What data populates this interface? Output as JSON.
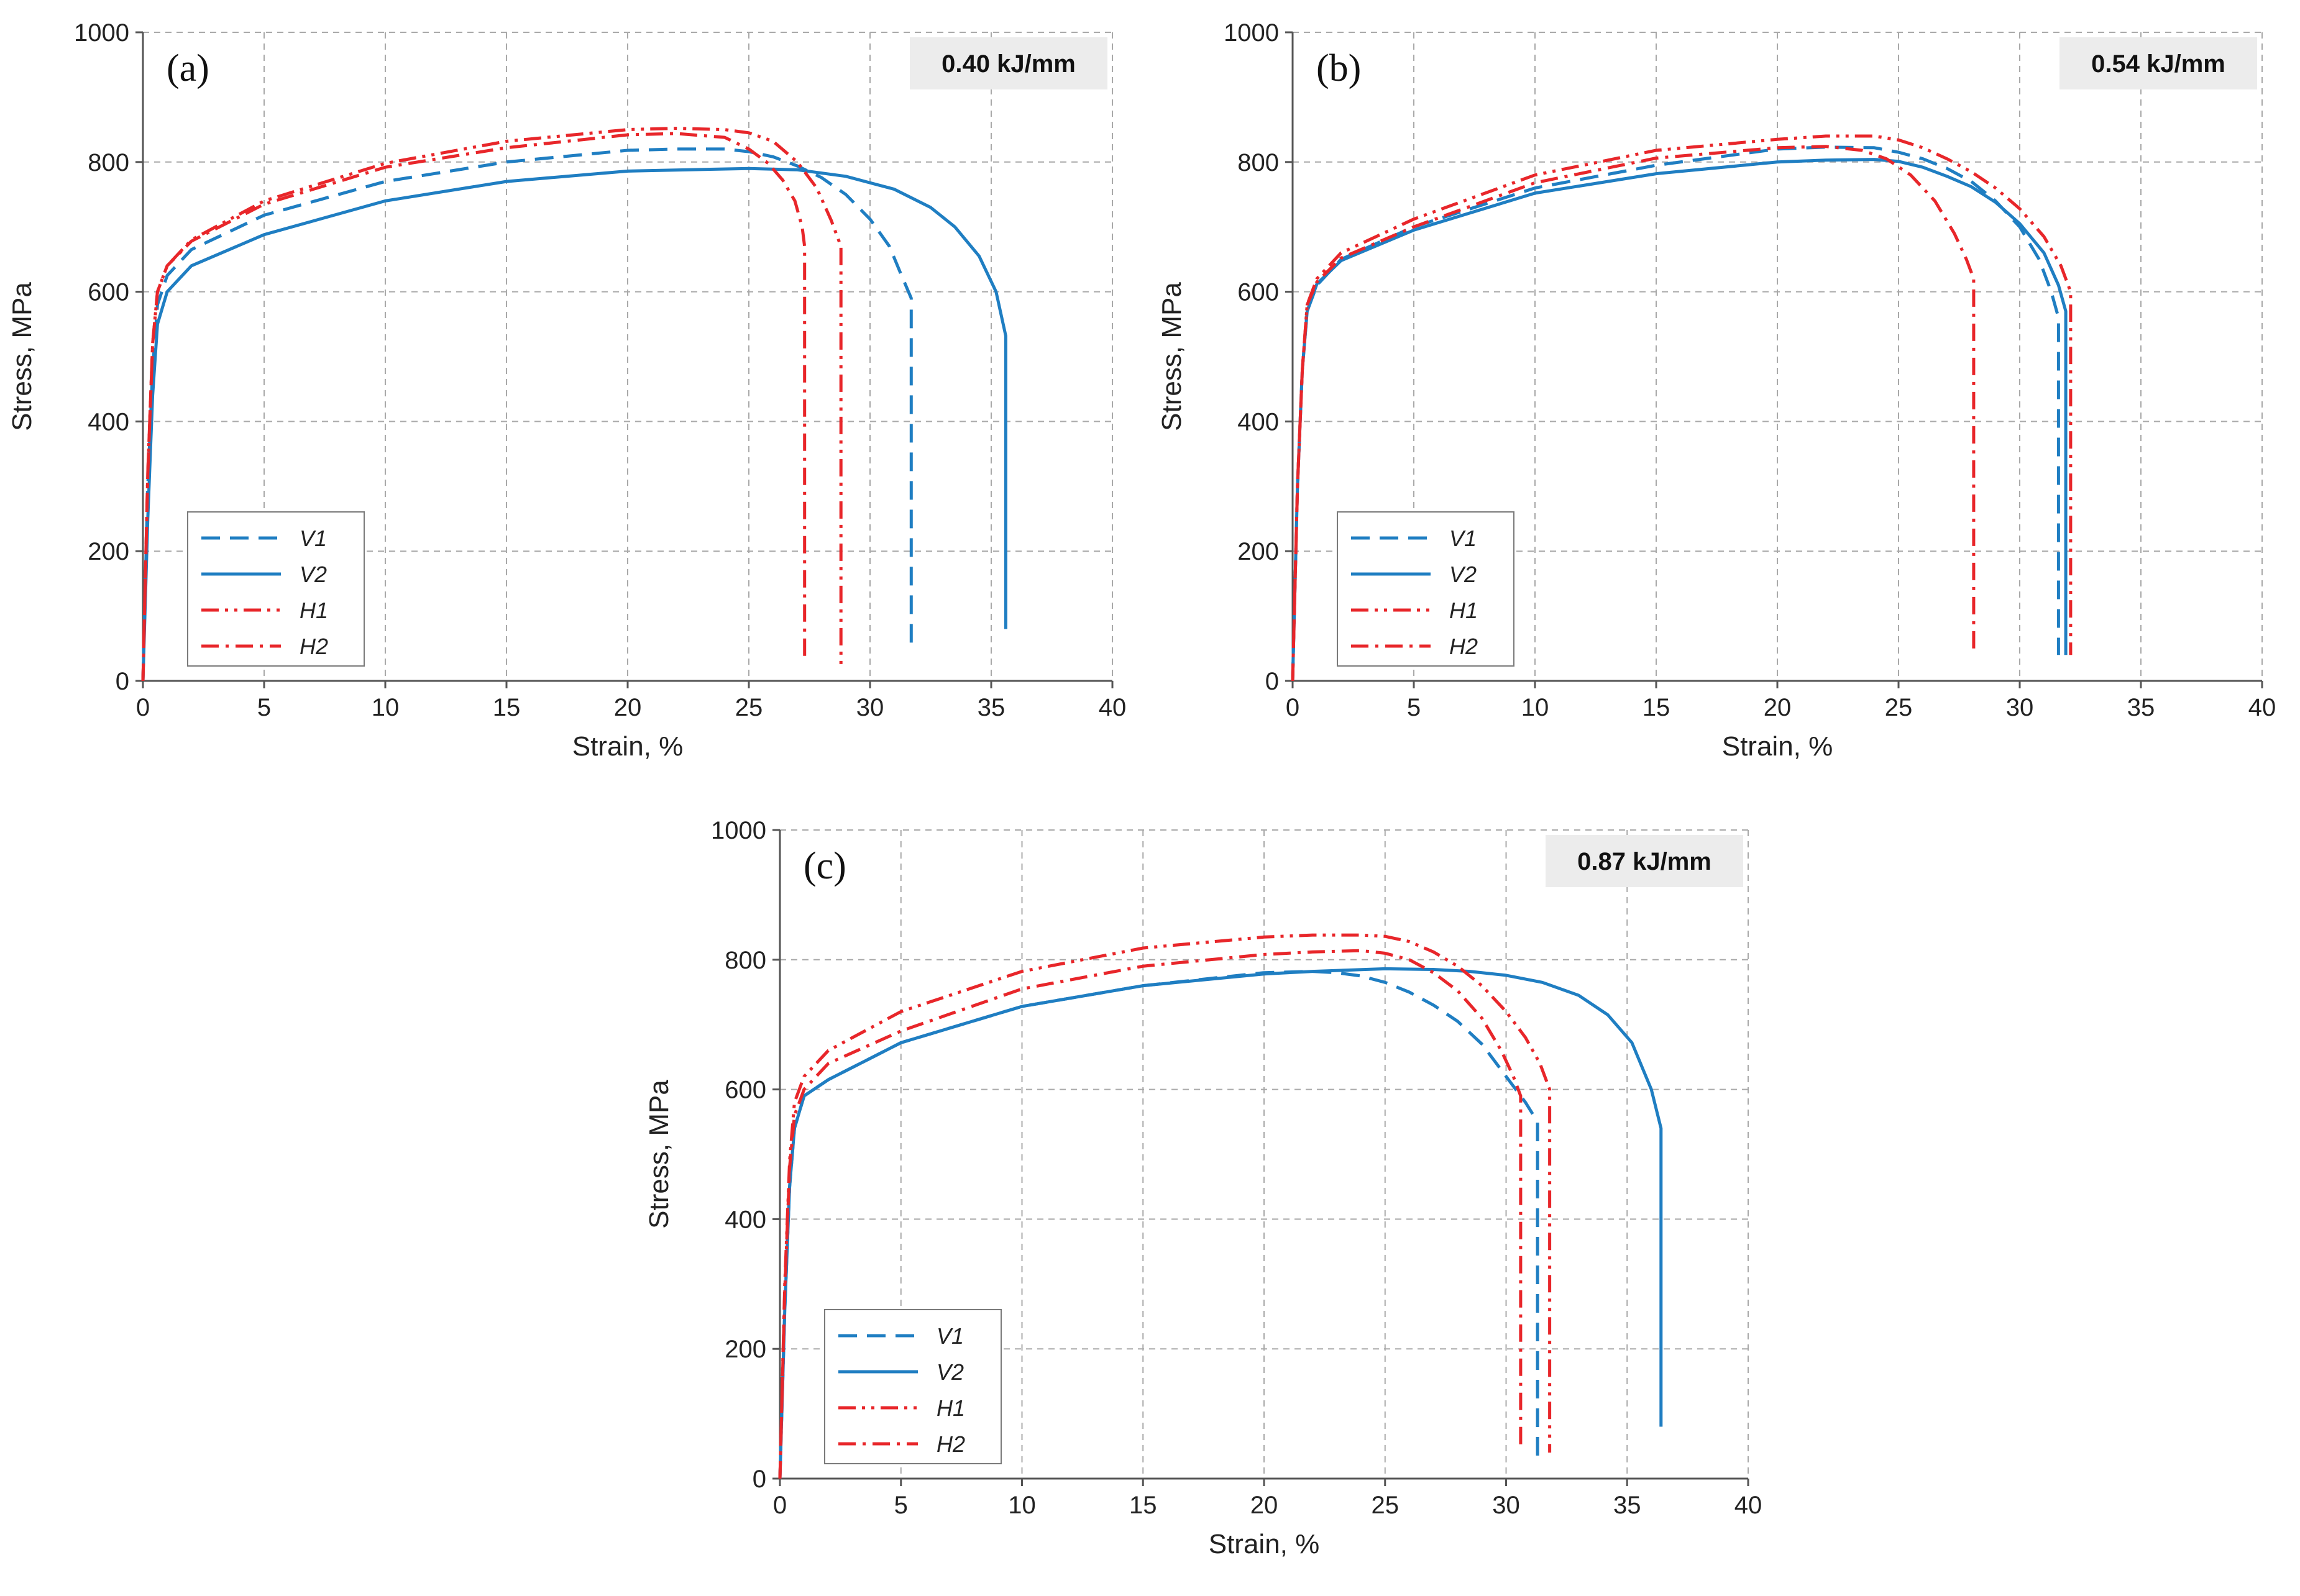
{
  "chart_data": [
    {
      "type": "line",
      "panel_label": "(a)",
      "heat_input": "0.40 kJ/mm",
      "xlabel": "Strain, %",
      "ylabel": "Stress, MPa",
      "xlim": [
        0,
        40
      ],
      "ylim": [
        0,
        1000
      ],
      "xticks": [
        "0",
        "5",
        "10",
        "15",
        "20",
        "25",
        "30",
        "35",
        "40"
      ],
      "yticks": [
        "0",
        "200",
        "400",
        "600",
        "800",
        "1000"
      ],
      "grid": true,
      "legend_position": "bottom-left",
      "series": [
        {
          "name": "V1",
          "color": "#1f7ec2",
          "style": "dashed",
          "x": [
            0,
            0.2,
            0.4,
            0.6,
            1,
            2,
            5,
            10,
            15,
            20,
            22,
            24,
            25,
            26,
            27,
            28,
            29,
            30,
            30.8,
            31.3,
            31.7,
            31.7
          ],
          "y": [
            0,
            300,
            480,
            580,
            625,
            665,
            718,
            770,
            800,
            818,
            820,
            820,
            816,
            808,
            794,
            776,
            750,
            712,
            670,
            625,
            590,
            50
          ]
        },
        {
          "name": "V2",
          "color": "#1f7ec2",
          "style": "solid",
          "x": [
            0,
            0.2,
            0.4,
            0.6,
            1,
            2,
            5,
            10,
            15,
            20,
            25,
            27,
            29,
            31,
            32.5,
            33.5,
            34.5,
            35.2,
            35.6,
            35.6,
            35.6
          ],
          "y": [
            0,
            250,
            440,
            550,
            600,
            640,
            688,
            740,
            770,
            786,
            790,
            788,
            778,
            758,
            730,
            700,
            655,
            600,
            532,
            400,
            80
          ]
        },
        {
          "name": "H1",
          "color": "#e8262a",
          "style": "dash-dot-dot",
          "x": [
            0,
            0.2,
            0.4,
            0.6,
            1,
            2,
            5,
            10,
            15,
            20,
            22,
            24,
            25,
            26,
            27,
            27.8,
            28.4,
            28.8,
            28.8
          ],
          "y": [
            0,
            320,
            520,
            600,
            640,
            680,
            740,
            798,
            832,
            850,
            852,
            850,
            845,
            832,
            800,
            760,
            710,
            670,
            25
          ]
        },
        {
          "name": "H2",
          "color": "#e8262a",
          "style": "dash-dot",
          "x": [
            0,
            0.2,
            0.4,
            0.6,
            1,
            2,
            5,
            10,
            15,
            20,
            22,
            24,
            25,
            25.8,
            26.4,
            26.9,
            27.2,
            27.3,
            27.3
          ],
          "y": [
            0,
            320,
            520,
            600,
            640,
            678,
            735,
            792,
            822,
            842,
            844,
            838,
            820,
            798,
            772,
            740,
            700,
            670,
            35
          ]
        }
      ]
    },
    {
      "type": "line",
      "panel_label": "(b)",
      "heat_input": "0.54 kJ/mm",
      "xlabel": "Strain, %",
      "ylabel": "Stress, MPa",
      "xlim": [
        0,
        40
      ],
      "ylim": [
        0,
        1000
      ],
      "xticks": [
        "0",
        "5",
        "10",
        "15",
        "20",
        "25",
        "30",
        "35",
        "40"
      ],
      "yticks": [
        "0",
        "200",
        "400",
        "600",
        "800",
        "1000"
      ],
      "grid": true,
      "legend_position": "bottom-left",
      "series": [
        {
          "name": "V1",
          "color": "#1f7ec2",
          "style": "dashed",
          "x": [
            0,
            0.2,
            0.4,
            0.6,
            1,
            2,
            5,
            10,
            15,
            20,
            22,
            24,
            25,
            26,
            27,
            28,
            29,
            30,
            30.8,
            31.3,
            31.6,
            31.6
          ],
          "y": [
            0,
            300,
            480,
            570,
            610,
            650,
            700,
            760,
            795,
            820,
            823,
            822,
            815,
            805,
            790,
            770,
            740,
            700,
            650,
            600,
            560,
            40
          ]
        },
        {
          "name": "V2",
          "color": "#1f7ec2",
          "style": "solid",
          "x": [
            0,
            0.2,
            0.4,
            0.6,
            1,
            2,
            5,
            10,
            15,
            20,
            22,
            24,
            25,
            26,
            27,
            28,
            29,
            30,
            31,
            31.6,
            31.9,
            31.9
          ],
          "y": [
            0,
            300,
            480,
            570,
            612,
            648,
            695,
            752,
            782,
            800,
            803,
            804,
            801,
            792,
            778,
            762,
            738,
            705,
            660,
            610,
            570,
            40
          ]
        },
        {
          "name": "H1",
          "color": "#e8262a",
          "style": "dash-dot-dot",
          "x": [
            0,
            0.2,
            0.4,
            0.6,
            1,
            2,
            5,
            10,
            15,
            20,
            22,
            24,
            25,
            26,
            27,
            28,
            29,
            30,
            31,
            31.7,
            32.1,
            32.1
          ],
          "y": [
            0,
            300,
            480,
            580,
            620,
            660,
            712,
            780,
            818,
            835,
            840,
            840,
            834,
            822,
            805,
            785,
            760,
            728,
            685,
            640,
            600,
            40
          ]
        },
        {
          "name": "H2",
          "color": "#e8262a",
          "style": "dash-dot",
          "x": [
            0,
            0.2,
            0.4,
            0.6,
            1,
            2,
            5,
            10,
            15,
            20,
            22,
            23.5,
            24.5,
            25.5,
            26.5,
            27.3,
            27.8,
            28.1,
            28.1
          ],
          "y": [
            0,
            300,
            480,
            580,
            615,
            652,
            700,
            768,
            806,
            822,
            824,
            818,
            805,
            780,
            740,
            690,
            650,
            620,
            50
          ]
        }
      ]
    },
    {
      "type": "line",
      "panel_label": "(c)",
      "heat_input": "0.87 kJ/mm",
      "xlabel": "Strain, %",
      "ylabel": "Stress, MPa",
      "xlim": [
        0,
        40
      ],
      "ylim": [
        0,
        1000
      ],
      "xticks": [
        "0",
        "5",
        "10",
        "15",
        "20",
        "25",
        "30",
        "35",
        "40"
      ],
      "yticks": [
        "0",
        "200",
        "400",
        "600",
        "800",
        "1000"
      ],
      "grid": true,
      "legend_position": "bottom-left",
      "series": [
        {
          "name": "V1",
          "color": "#1f7ec2",
          "style": "dashed",
          "x": [
            0,
            0.2,
            0.4,
            0.6,
            1,
            2,
            5,
            10,
            15,
            20,
            22,
            23,
            24,
            25,
            26,
            27,
            28,
            29,
            30,
            30.8,
            31.3,
            31.3
          ],
          "y": [
            0,
            260,
            450,
            540,
            590,
            615,
            672,
            728,
            760,
            780,
            782,
            780,
            775,
            765,
            750,
            730,
            705,
            670,
            620,
            580,
            550,
            35
          ]
        },
        {
          "name": "V2",
          "color": "#1f7ec2",
          "style": "solid",
          "x": [
            0,
            0.2,
            0.4,
            0.6,
            1,
            2,
            5,
            10,
            15,
            20,
            22,
            25,
            27,
            28.5,
            30,
            31.5,
            33,
            34.2,
            35.2,
            36,
            36.4,
            36.4
          ],
          "y": [
            0,
            260,
            450,
            540,
            590,
            615,
            672,
            728,
            760,
            778,
            782,
            786,
            785,
            782,
            776,
            765,
            745,
            715,
            672,
            600,
            540,
            80
          ]
        },
        {
          "name": "H1",
          "color": "#e8262a",
          "style": "dash-dot-dot",
          "x": [
            0,
            0.2,
            0.4,
            0.6,
            1,
            2,
            5,
            10,
            15,
            20,
            22,
            24,
            25,
            26,
            27,
            28,
            29,
            30,
            30.8,
            31.4,
            31.8,
            31.8
          ],
          "y": [
            0,
            300,
            490,
            580,
            620,
            660,
            720,
            782,
            818,
            835,
            838,
            838,
            836,
            828,
            812,
            790,
            760,
            720,
            680,
            640,
            600,
            40
          ]
        },
        {
          "name": "H2",
          "color": "#e8262a",
          "style": "dash-dot",
          "x": [
            0,
            0.2,
            0.4,
            0.6,
            1,
            2,
            5,
            10,
            15,
            20,
            22,
            24,
            25,
            26,
            27,
            28,
            29,
            29.8,
            30.3,
            30.6,
            30.6
          ],
          "y": [
            0,
            290,
            480,
            560,
            600,
            640,
            690,
            755,
            790,
            808,
            812,
            814,
            810,
            800,
            780,
            752,
            710,
            660,
            620,
            590,
            50
          ]
        }
      ]
    }
  ]
}
